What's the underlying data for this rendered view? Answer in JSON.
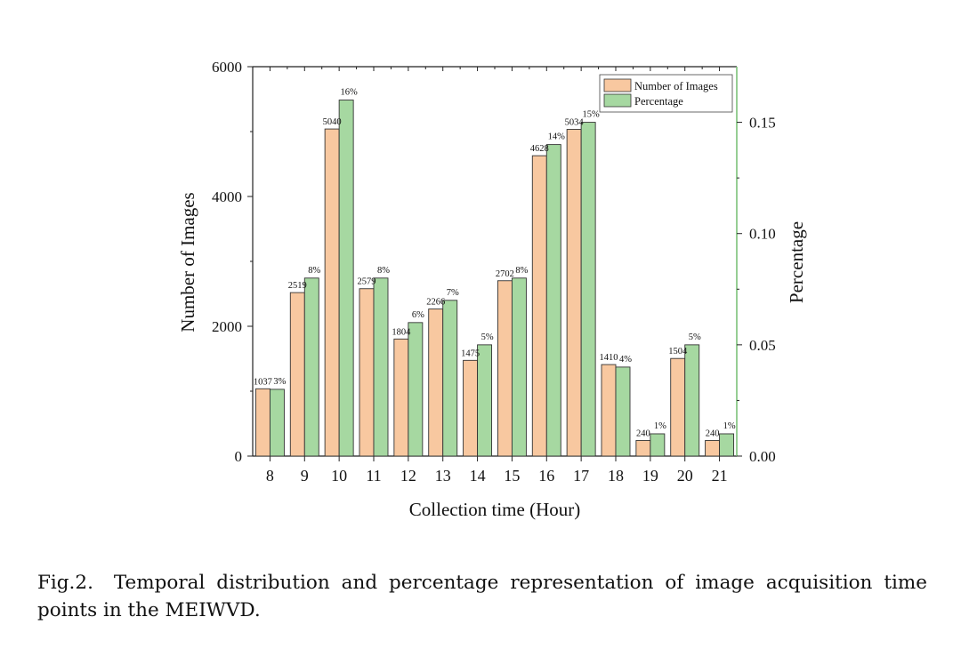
{
  "chart_data": {
    "type": "bar",
    "categories": [
      "8",
      "9",
      "10",
      "11",
      "12",
      "13",
      "14",
      "15",
      "16",
      "17",
      "18",
      "19",
      "20",
      "21"
    ],
    "series": [
      {
        "name": "Number of Images",
        "axis": "left",
        "color": "#f8c8a0",
        "values": [
          1037,
          2519,
          5040,
          2579,
          1804,
          2266,
          1475,
          2702,
          4628,
          5034,
          1410,
          240,
          1504,
          240
        ],
        "labels": [
          "1037",
          "2519",
          "5040",
          "2579",
          "1804",
          "2266",
          "1475",
          "2702",
          "4628",
          "5034",
          "1410",
          "240",
          "1504",
          "240"
        ]
      },
      {
        "name": "Percentage",
        "axis": "right",
        "color": "#a6d8a1",
        "values": [
          0.03,
          0.08,
          0.16,
          0.08,
          0.06,
          0.07,
          0.05,
          0.08,
          0.14,
          0.15,
          0.04,
          0.01,
          0.05,
          0.01
        ],
        "labels": [
          "3%",
          "8%",
          "16%",
          "8%",
          "6%",
          "7%",
          "5%",
          "8%",
          "14%",
          "15%",
          "4%",
          "1%",
          "5%",
          "1%"
        ]
      }
    ],
    "xlabel": "Collection time (Hour)",
    "ylabel": "Number of Images",
    "y2label": "Percentage",
    "ylim": [
      0,
      6000
    ],
    "y2lim": [
      0,
      0.175
    ],
    "yticks": [
      0,
      2000,
      4000,
      6000
    ],
    "y2ticks": [
      0.0,
      0.05,
      0.1,
      0.15
    ],
    "y2tick_labels": [
      "0.00",
      "0.05",
      "0.10",
      "0.15"
    ],
    "legend_position": "top-right",
    "grid": false
  },
  "caption": {
    "label": "Fig.2.",
    "text": "Temporal distribution and percentage representation of image acquisition time points in the MEIWVD."
  }
}
